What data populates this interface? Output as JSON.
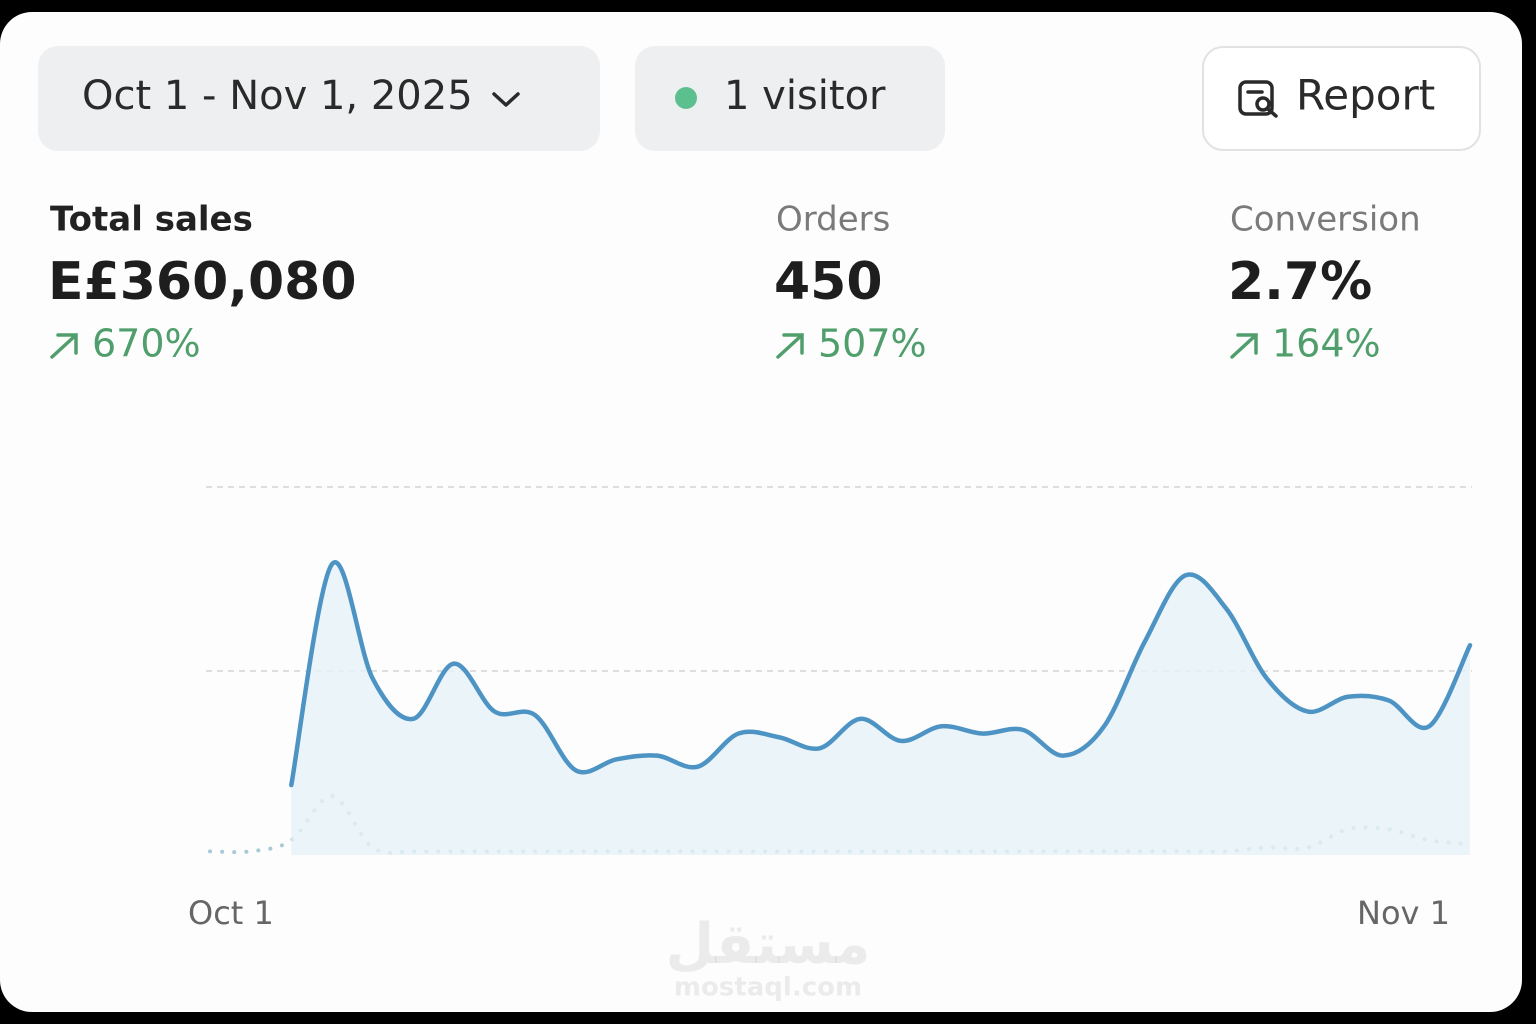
{
  "header": {
    "date_range": "Oct 1 - Nov 1, 2025",
    "visitors": "1 visitor",
    "report": "Report"
  },
  "metrics": [
    {
      "label": "Total sales",
      "value": "E£360,080",
      "change": "670%"
    },
    {
      "label": "Orders",
      "value": "450",
      "change": "507%"
    },
    {
      "label": "Conversion",
      "value": "2.7%",
      "change": "164%"
    }
  ],
  "chart_data": {
    "type": "line",
    "categories": [
      "Oct 1",
      null,
      null,
      null,
      null,
      null,
      null,
      null,
      null,
      null,
      null,
      null,
      null,
      null,
      null,
      null,
      null,
      null,
      null,
      null,
      null,
      null,
      null,
      null,
      null,
      null,
      null,
      null,
      null,
      null,
      null,
      "Nov 1"
    ],
    "series": [
      {
        "color": "#4d94c4",
        "fill": "#e6f1f7",
        "values": [
          null,
          null,
          19,
          79,
          48,
          37,
          52,
          39,
          38,
          23,
          26,
          27,
          24,
          33,
          32,
          29,
          37,
          31,
          35,
          33,
          34,
          27,
          35,
          58,
          76,
          67,
          48,
          39,
          43,
          42,
          35,
          57
        ]
      },
      {
        "color": "#a9cbd8",
        "dash": "dotted",
        "values": [
          1,
          1,
          4,
          16,
          2,
          1,
          1,
          1,
          1,
          1,
          1,
          1,
          1,
          1,
          1,
          1,
          1,
          1,
          1,
          1,
          1,
          1,
          1,
          1,
          1,
          1,
          2,
          2,
          7,
          7,
          4,
          3
        ]
      }
    ],
    "ylim": [
      0,
      100
    ],
    "yticks": [
      50,
      100
    ],
    "grid": true
  },
  "watermark": {
    "arabic": "مستقل",
    "latin": "mostaql.com"
  }
}
